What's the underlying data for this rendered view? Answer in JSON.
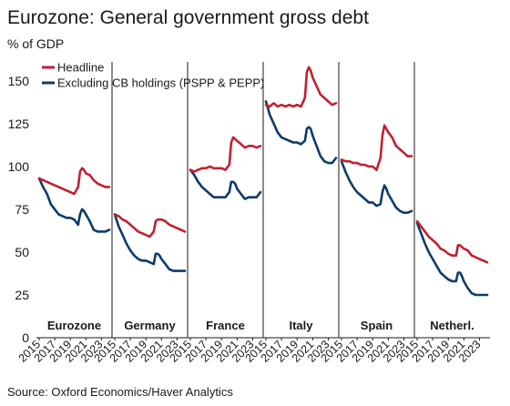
{
  "title": "Eurozone: General government gross debt",
  "unit_label": "% of GDP",
  "source": "Source: Oxford Economics/Haver Analytics",
  "colors": {
    "headline": "#c0212f",
    "excluding": "#0d3b6b"
  },
  "chart_data": {
    "type": "line",
    "title": "Eurozone: General government gross debt",
    "ylabel": "% of GDP",
    "ylim": [
      0,
      160
    ],
    "yticks": [
      0,
      25,
      50,
      75,
      100,
      125,
      150
    ],
    "x_tick_labels": [
      "2015",
      "2017",
      "2019",
      "2021",
      "2023"
    ],
    "legend": {
      "position": "top-left",
      "entries": [
        "Headline",
        "Excluding CB holdings (PSPP & PEPP)"
      ]
    },
    "grid": false,
    "panels": [
      {
        "name": "Eurozone",
        "x": [
          2015.0,
          2015.5,
          2016.0,
          2016.5,
          2017.0,
          2017.5,
          2018.0,
          2018.5,
          2019.0,
          2019.5,
          2020.0,
          2020.25,
          2020.5,
          2020.75,
          2021.0,
          2021.5,
          2022.0,
          2022.5,
          2023.0,
          2023.5,
          2024.0
        ],
        "series": [
          {
            "name": "Headline",
            "values": [
              93,
              92,
              91,
              90,
              89,
              88,
              87,
              86,
              85,
              84,
              88,
              97,
              99,
              98,
              96,
              95,
              92,
              90,
              89,
              88,
              88
            ]
          },
          {
            "name": "Excluding CB holdings (PSPP & PEPP)",
            "values": [
              93,
              88,
              84,
              78,
              75,
              72,
              71,
              70,
              70,
              69,
              66,
              72,
              75,
              74,
              72,
              68,
              63,
              62,
              62,
              62,
              63
            ]
          }
        ]
      },
      {
        "name": "Germany",
        "x": [
          2015.0,
          2015.5,
          2016.0,
          2016.5,
          2017.0,
          2017.5,
          2018.0,
          2018.5,
          2019.0,
          2019.5,
          2020.0,
          2020.25,
          2020.5,
          2020.75,
          2021.0,
          2021.5,
          2022.0,
          2022.5,
          2023.0,
          2023.5,
          2024.0
        ],
        "series": [
          {
            "name": "Headline",
            "values": [
              72,
              71,
              69,
              68,
              66,
              64,
              62,
              61,
              60,
              59,
              62,
              68,
              69,
              69,
              69,
              68,
              66,
              65,
              64,
              63,
              62
            ]
          },
          {
            "name": "Excluding CB holdings (PSPP & PEPP)",
            "values": [
              72,
              65,
              60,
              55,
              51,
              48,
              46,
              45,
              45,
              44,
              43,
              49,
              49,
              48,
              46,
              43,
              40,
              39,
              39,
              39,
              39
            ]
          }
        ]
      },
      {
        "name": "France",
        "x": [
          2015.0,
          2015.5,
          2016.0,
          2016.5,
          2017.0,
          2017.5,
          2018.0,
          2018.5,
          2019.0,
          2019.5,
          2020.0,
          2020.25,
          2020.5,
          2020.75,
          2021.0,
          2021.5,
          2022.0,
          2022.5,
          2023.0,
          2023.5,
          2024.0
        ],
        "series": [
          {
            "name": "Headline",
            "values": [
              98,
              97,
              98,
              99,
              99,
              100,
              99,
              99,
              99,
              98,
              101,
              114,
              117,
              116,
              115,
              113,
              111,
              112,
              112,
              111,
              112
            ]
          },
          {
            "name": "Excluding CB holdings (PSPP & PEPP)",
            "values": [
              98,
              95,
              91,
              88,
              86,
              84,
              82,
              82,
              82,
              82,
              85,
              91,
              91,
              90,
              87,
              84,
              81,
              82,
              82,
              82,
              85
            ]
          }
        ]
      },
      {
        "name": "Italy",
        "x": [
          2015.0,
          2015.5,
          2016.0,
          2016.5,
          2017.0,
          2017.5,
          2018.0,
          2018.5,
          2019.0,
          2019.5,
          2020.0,
          2020.25,
          2020.5,
          2020.75,
          2021.0,
          2021.5,
          2022.0,
          2022.5,
          2023.0,
          2023.5,
          2024.0
        ],
        "series": [
          {
            "name": "Headline",
            "values": [
              136,
              135,
              137,
              135,
              136,
              135,
              136,
              135,
              136,
              135,
              140,
              155,
              158,
              156,
              152,
              147,
              142,
              140,
              138,
              136,
              137
            ]
          },
          {
            "name": "Excluding CB holdings (PSPP & PEPP)",
            "values": [
              138,
              130,
              125,
              120,
              117,
              116,
              115,
              114,
              114,
              113,
              115,
              122,
              123,
              122,
              118,
              112,
              106,
              103,
              102,
              102,
              105
            ]
          }
        ]
      },
      {
        "name": "Spain",
        "x": [
          2015.0,
          2015.5,
          2016.0,
          2016.5,
          2017.0,
          2017.5,
          2018.0,
          2018.5,
          2019.0,
          2019.5,
          2020.0,
          2020.25,
          2020.5,
          2020.75,
          2021.0,
          2021.5,
          2022.0,
          2022.5,
          2023.0,
          2023.5,
          2024.0
        ],
        "series": [
          {
            "name": "Headline",
            "values": [
              104,
              103,
              103,
              102,
              102,
              101,
              101,
              100,
              100,
              98,
              105,
              118,
              124,
              122,
              120,
              117,
              112,
              110,
              108,
              106,
              106
            ]
          },
          {
            "name": "Excluding CB holdings (PSPP & PEPP)",
            "values": [
              103,
              97,
              92,
              88,
              85,
              83,
              81,
              79,
              79,
              77,
              78,
              85,
              89,
              87,
              84,
              80,
              76,
              74,
              73,
              73,
              74
            ]
          }
        ]
      },
      {
        "name": "Netherl.",
        "x": [
          2015.0,
          2015.5,
          2016.0,
          2016.5,
          2017.0,
          2017.5,
          2018.0,
          2018.5,
          2019.0,
          2019.5,
          2020.0,
          2020.25,
          2020.5,
          2020.75,
          2021.0,
          2021.5,
          2022.0,
          2022.5,
          2023.0,
          2023.5,
          2024.0
        ],
        "series": [
          {
            "name": "Headline",
            "values": [
              68,
              65,
              62,
              59,
              57,
              55,
              52,
              51,
              49,
              48,
              48,
              54,
              54,
              53,
              52,
              51,
              48,
              47,
              46,
              45,
              44
            ]
          },
          {
            "name": "Excluding CB holdings (PSPP & PEPP)",
            "values": [
              67,
              61,
              55,
              50,
              46,
              42,
              38,
              36,
              34,
              33,
              33,
              38,
              38,
              36,
              33,
              29,
              26,
              25,
              25,
              25,
              25
            ]
          }
        ]
      }
    ]
  }
}
